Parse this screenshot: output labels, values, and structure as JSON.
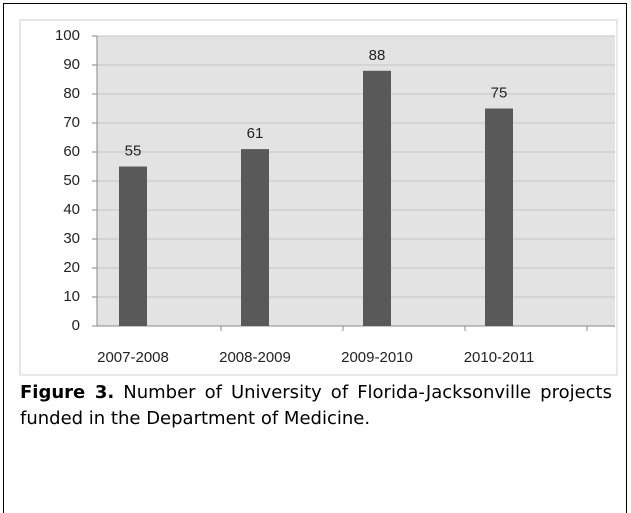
{
  "chart_data": {
    "type": "bar",
    "categories": [
      "2007-2008",
      "2008-2009",
      "2009-2010",
      "2010-2011"
    ],
    "values": [
      55,
      61,
      88,
      75
    ],
    "color": "#595959",
    "ylim": [
      0,
      100
    ],
    "yticks": [
      0,
      10,
      20,
      30,
      40,
      50,
      60,
      70,
      80,
      90,
      100
    ],
    "grid": true
  },
  "caption": {
    "label": "Figure 3.",
    "text": "Number of University of Florida-Jacksonville projects funded in the Department of Medicine."
  }
}
